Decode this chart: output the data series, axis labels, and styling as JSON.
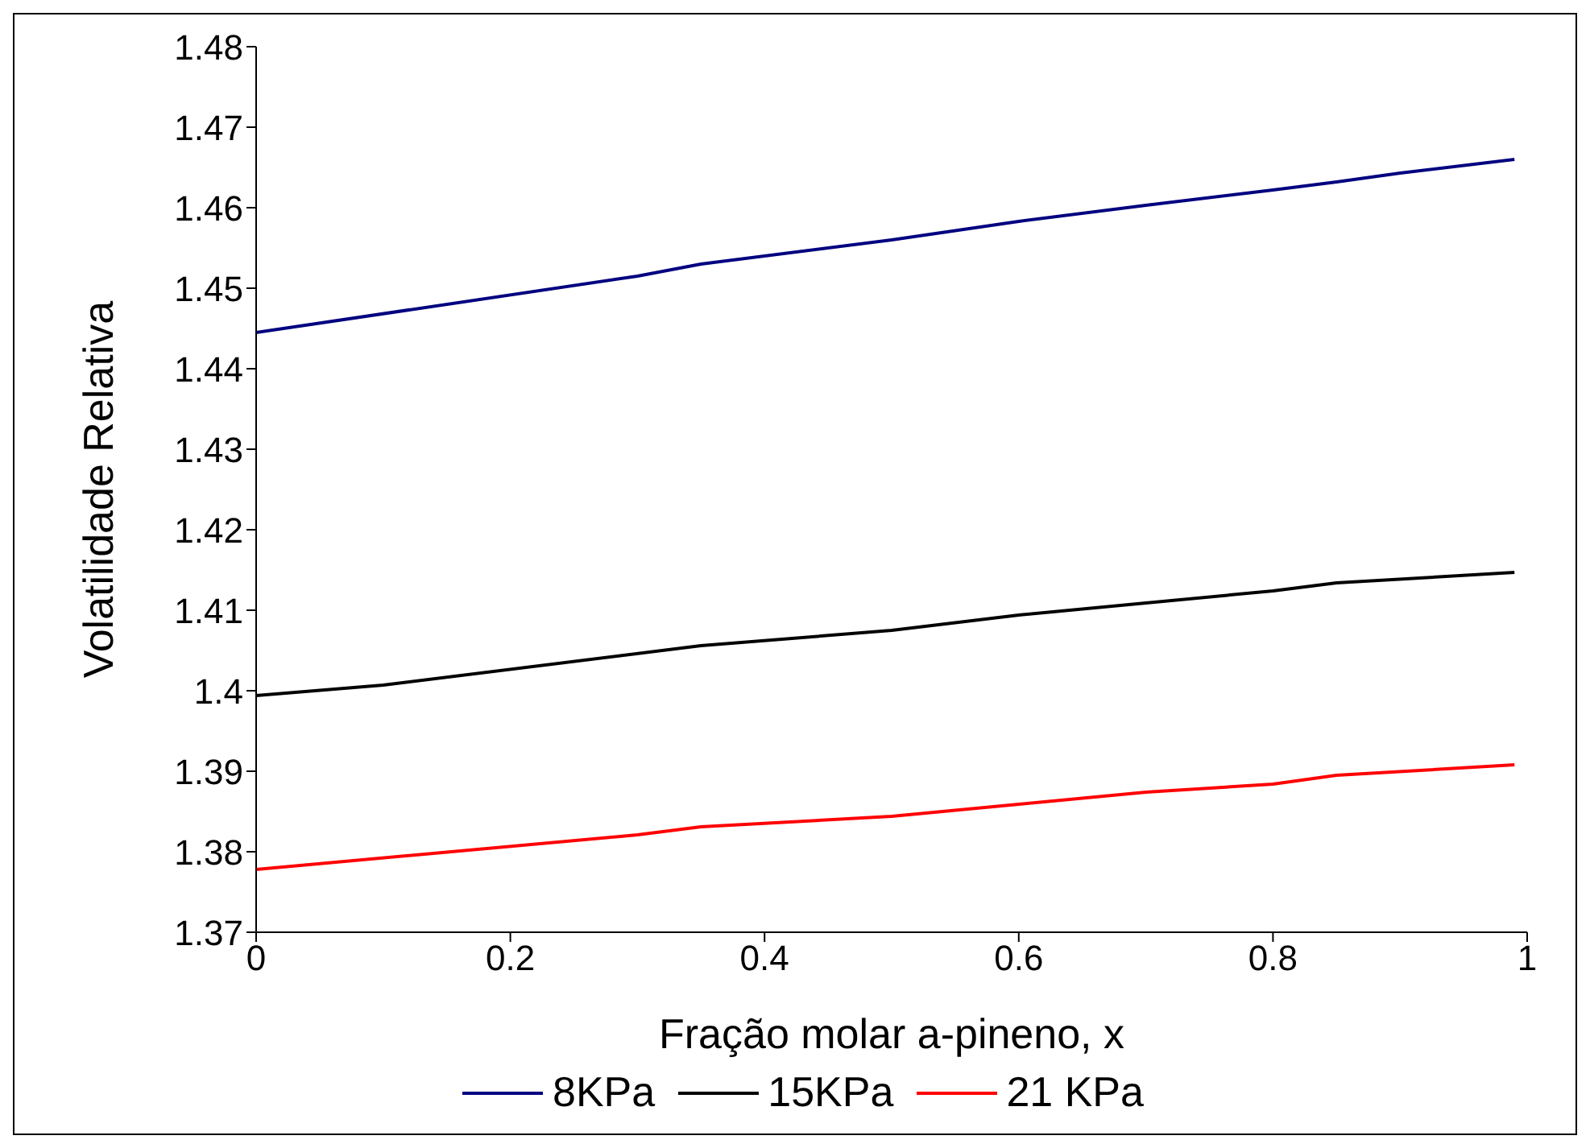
{
  "chart_data": {
    "type": "line",
    "xlabel": "Fração molar a-pineno, x",
    "ylabel": "Volatilidade Relativa",
    "xlim": [
      0,
      1
    ],
    "xticks": [
      0,
      0.2,
      0.4,
      0.6,
      0.8,
      1
    ],
    "ylim": [
      1.37,
      1.48
    ],
    "yticks": [
      1.37,
      1.38,
      1.39,
      1.4,
      1.41,
      1.42,
      1.43,
      1.44,
      1.45,
      1.46,
      1.47,
      1.48
    ],
    "grid": false,
    "legend": "bottom",
    "marker": "none",
    "line_style": "solid",
    "series": [
      {
        "name": "8KPa",
        "color": "#000080",
        "x": [
          0,
          0.3,
          0.35,
          0.5,
          0.6,
          0.7,
          0.8,
          0.85,
          0.9,
          0.99
        ],
        "values": [
          1.4445,
          1.4515,
          1.453,
          1.456,
          1.4583,
          1.4603,
          1.4622,
          1.4632,
          1.4643,
          1.466
        ]
      },
      {
        "name": "15KPa",
        "color": "#000000",
        "x": [
          0,
          0.1,
          0.35,
          0.5,
          0.6,
          0.7,
          0.8,
          0.85,
          0.99
        ],
        "values": [
          1.3994,
          1.4007,
          1.4056,
          1.4075,
          1.4094,
          1.4109,
          1.4124,
          1.4134,
          1.4147
        ]
      },
      {
        "name": "21 KPa",
        "color": "#ff0000",
        "x": [
          0,
          0.3,
          0.35,
          0.5,
          0.6,
          0.7,
          0.8,
          0.85,
          0.99
        ],
        "values": [
          1.3778,
          1.3821,
          1.3831,
          1.3844,
          1.3859,
          1.3874,
          1.3884,
          1.3895,
          1.3908
        ]
      }
    ]
  }
}
